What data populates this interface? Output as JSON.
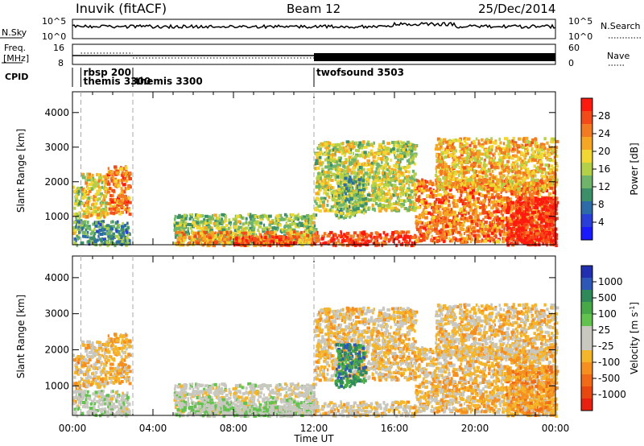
{
  "header": {
    "station": "Inuvik (fitACF)",
    "beam": "Beam 12",
    "date": "25/Dec/2014"
  },
  "panels": {
    "nsky": {
      "label": "N.Sky",
      "ticks": [
        "10^5",
        "10^0"
      ]
    },
    "nsearch": {
      "label": "N.Search",
      "ticks": [
        "10^5",
        "10^0"
      ]
    },
    "freq": {
      "label_line1": "Freq.",
      "label_line2": "[MHz]",
      "ticks": [
        "16",
        "8"
      ]
    },
    "nave": {
      "label": "Nave",
      "ticks": [
        "60",
        "0"
      ]
    },
    "cpid": {
      "label": "CPID",
      "programs": [
        {
          "text": "rbsp 200",
          "time": 0.42,
          "row": 0
        },
        {
          "text": "themis 3300",
          "time": 0.42,
          "row": 1
        },
        {
          "text": "themis 3300",
          "time": 3.0,
          "row": 1
        },
        {
          "text": "twofsound 3503",
          "time": 12.0,
          "row": 0
        }
      ]
    }
  },
  "colorbars": {
    "power": {
      "label": "Power [dB]",
      "ticks": [
        "28",
        "24",
        "20",
        "16",
        "12",
        "8",
        "4"
      ],
      "colors": [
        "#ff1a10",
        "#f24a18",
        "#f27a22",
        "#f5a623",
        "#f2d632",
        "#b4d048",
        "#6fb46a",
        "#3d8f6a",
        "#2d6aa8",
        "#2a3ed8",
        "#1a1aff"
      ]
    },
    "velocity": {
      "label": "Velocity [m s",
      "label_sup": "-1",
      "label_end": "]",
      "ticks": [
        "1000",
        "500",
        "100",
        "25",
        "-25",
        "-100",
        "-500",
        "-1000"
      ],
      "colors": [
        "#2030b0",
        "#2e58b8",
        "#2f8a5a",
        "#46a846",
        "#62c24e",
        "#c8c8c0",
        "#c8c8c0",
        "#f5b52a",
        "#f59020",
        "#f06a18",
        "#e84810",
        "#e82010"
      ]
    }
  },
  "axes": {
    "xlabel": "Time UT",
    "ylabel": "Slant Range [km]",
    "xticks": [
      "00:00",
      "04:00",
      "08:00",
      "12:00",
      "16:00",
      "20:00",
      "00:00"
    ],
    "yticks": [
      "1000",
      "2000",
      "3000",
      "4000"
    ]
  },
  "chart_data": {
    "type": "heatmap",
    "x_range_hours": [
      0,
      24
    ],
    "y_range_km": [
      180,
      4600
    ],
    "dashed_program_boundaries_hours": [
      0.42,
      3.0,
      12.0
    ],
    "power_scale_db": [
      0,
      30
    ],
    "velocity_scale_ms": [
      -1000,
      1000
    ],
    "scatter_regions": [
      {
        "t0": 0.0,
        "t1": 0.42,
        "r0": 400,
        "r1": 1900,
        "power": 14,
        "velocity": -300
      },
      {
        "t0": 0.42,
        "t1": 1.7,
        "r0": 1000,
        "r1": 2300,
        "power": 18,
        "velocity": -200
      },
      {
        "t0": 1.7,
        "t1": 2.8,
        "r0": 1100,
        "r1": 2500,
        "power": 24,
        "velocity": -300
      },
      {
        "t0": 0.0,
        "t1": 2.8,
        "r0": 200,
        "r1": 900,
        "power": 10,
        "velocity": 50
      },
      {
        "t0": 5.0,
        "t1": 12.0,
        "r0": 250,
        "r1": 1100,
        "power": 14,
        "velocity": 0
      },
      {
        "t0": 5.0,
        "t1": 12.0,
        "r0": 200,
        "r1": 600,
        "power": 22,
        "velocity": 100
      },
      {
        "t0": 8.0,
        "t1": 11.0,
        "r0": 200,
        "r1": 450,
        "power": 28,
        "velocity": 50
      },
      {
        "t0": 12.0,
        "t1": 17.0,
        "r0": 200,
        "r1": 600,
        "power": 28,
        "velocity": -150
      },
      {
        "t0": 12.0,
        "t1": 17.0,
        "r0": 1200,
        "r1": 3200,
        "power": 16,
        "velocity": -200
      },
      {
        "t0": 13.0,
        "t1": 14.5,
        "r0": 1000,
        "r1": 2200,
        "power": 12,
        "velocity": 600
      },
      {
        "t0": 17.0,
        "t1": 24.0,
        "r0": 300,
        "r1": 2100,
        "power": 24,
        "velocity": -250
      },
      {
        "t0": 18.0,
        "t1": 24.0,
        "r0": 1800,
        "r1": 3300,
        "power": 20,
        "velocity": -200
      },
      {
        "t0": 21.5,
        "t1": 24.0,
        "r0": 200,
        "r1": 1600,
        "power": 30,
        "velocity": -400
      }
    ]
  }
}
